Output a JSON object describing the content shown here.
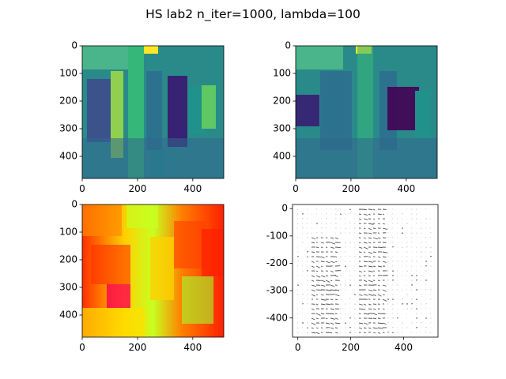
{
  "figure": {
    "title": "HS lab2 n_iter=1000, lambda=100"
  },
  "chart_data": [
    {
      "type": "heatmap",
      "panel": "top-left",
      "description_colormap": "viridis",
      "xticks": [
        "0",
        "200",
        "400"
      ],
      "yticks": [
        "0",
        "100",
        "200",
        "300",
        "400"
      ],
      "xlim": [
        0,
        512
      ],
      "ylim": [
        480,
        0
      ]
    },
    {
      "type": "heatmap",
      "panel": "top-right",
      "description_colormap": "viridis",
      "xticks": [
        "0",
        "200",
        "400"
      ],
      "yticks": [
        "0",
        "100",
        "200",
        "300",
        "400"
      ],
      "xlim": [
        0,
        512
      ],
      "ylim": [
        480,
        0
      ]
    },
    {
      "type": "heatmap",
      "panel": "bottom-left",
      "description_colormap": "hsv-like (red-yellow-green)",
      "xticks": [
        "0",
        "200",
        "400"
      ],
      "yticks": [
        "0",
        "100",
        "200",
        "300",
        "400"
      ],
      "xlim": [
        0,
        512
      ],
      "ylim": [
        480,
        0
      ]
    },
    {
      "type": "scatter",
      "panel": "bottom-right",
      "description": "quiver plot of optical flow vectors",
      "xticks": [
        "0",
        "200",
        "400"
      ],
      "yticks": [
        "0",
        "-100",
        "-200",
        "-300",
        "-400"
      ],
      "xlim": [
        -20,
        530
      ],
      "ylim": [
        -470,
        15
      ]
    }
  ]
}
